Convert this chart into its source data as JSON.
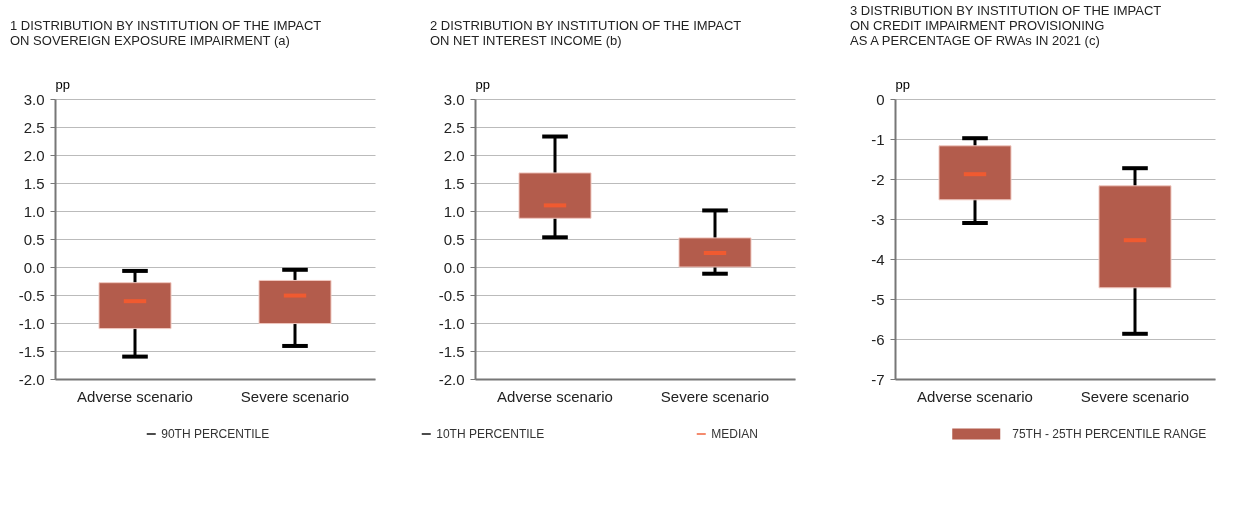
{
  "chart_data": [
    {
      "type": "box",
      "title": "1  DISTRIBUTION BY INSTITUTION OF THE IMPACT\nON SOVEREIGN EXPOSURE IMPAIRMENT (a)",
      "ylabel": "pp",
      "categories": [
        "Adverse scenario",
        "Severe scenario"
      ],
      "ylim": [
        -2,
        3
      ],
      "yticks": [
        {
          "value": -2,
          "label": "-2.0"
        },
        {
          "value": -1.5,
          "label": "-1.5"
        },
        {
          "value": -1,
          "label": "-1.0"
        },
        {
          "value": -0.5,
          "label": "-0.5"
        },
        {
          "value": 0,
          "label": "0.0"
        },
        {
          "value": 0.5,
          "label": "0.5"
        },
        {
          "value": 1,
          "label": "1.0"
        },
        {
          "value": 1.5,
          "label": "1.5"
        },
        {
          "value": 2,
          "label": "2.0"
        },
        {
          "value": 2.5,
          "label": "2.5"
        },
        {
          "value": 3,
          "label": "3.0"
        }
      ],
      "grid": "y",
      "series": [
        {
          "color": "#b35c4c",
          "boxes": [
            {
              "low": -1.6,
              "q1": -1.1,
              "median": -0.61,
              "q3": -0.28,
              "high": -0.07
            },
            {
              "low": -1.41,
              "q1": -1.01,
              "median": -0.51,
              "q3": -0.24,
              "high": -0.05
            }
          ]
        }
      ]
    },
    {
      "type": "box",
      "title": "2  DISTRIBUTION BY INSTITUTION OF THE IMPACT\nON NET INTEREST INCOME (b)",
      "ylabel": "pp",
      "categories": [
        "Adverse scenario",
        "Severe scenario"
      ],
      "ylim": [
        -2,
        3
      ],
      "yticks": [
        {
          "value": -2,
          "label": "-2.0"
        },
        {
          "value": -1.5,
          "label": "-1.5"
        },
        {
          "value": -1,
          "label": "-1.0"
        },
        {
          "value": -0.5,
          "label": "-0.5"
        },
        {
          "value": 0,
          "label": "0.0"
        },
        {
          "value": 0.5,
          "label": "0.5"
        },
        {
          "value": 1,
          "label": "1.0"
        },
        {
          "value": 1.5,
          "label": "1.5"
        },
        {
          "value": 2,
          "label": "2.0"
        },
        {
          "value": 2.5,
          "label": "2.5"
        },
        {
          "value": 3,
          "label": "3.0"
        }
      ],
      "grid": "y",
      "series": [
        {
          "color": "#b35c4c",
          "boxes": [
            {
              "low": 0.53,
              "q1": 0.87,
              "median": 1.1,
              "q3": 1.68,
              "high": 2.33
            },
            {
              "low": -0.12,
              "q1": 0.0,
              "median": 0.25,
              "q3": 0.52,
              "high": 1.01
            }
          ]
        }
      ]
    },
    {
      "type": "box",
      "title": "3  DISTRIBUTION BY INSTITUTION OF THE IMPACT\nON CREDIT IMPAIRMENT PROVISIONING\nAS A PERCENTAGE OF RWAs IN 2021 (c)",
      "ylabel": "pp",
      "categories": [
        "Adverse scenario",
        "Severe scenario"
      ],
      "ylim": [
        -7,
        0
      ],
      "yticks": [
        -7,
        -6,
        -5,
        -4,
        -3,
        -2,
        -1,
        0
      ],
      "grid": "y",
      "series": [
        {
          "color": "#b35c4c",
          "boxes": [
            {
              "low": -3.1,
              "q1": -2.52,
              "median": -1.88,
              "q3": -1.17,
              "high": -0.98
            },
            {
              "low": -5.87,
              "q1": -4.72,
              "median": -3.53,
              "q3": -2.17,
              "high": -1.73
            }
          ]
        }
      ]
    },
    {
      "type": "other",
      "series": [
        {
          "name": "90TH PERCENTILE",
          "color": "#000000",
          "type": "line"
        },
        {
          "name": "10TH PERCENTILE",
          "color": "#000000",
          "type": "line"
        },
        {
          "name": "MEDIAN",
          "color": "#f05a30",
          "type": "line"
        },
        {
          "name": "75TH - 25TH PERCENTILE RANGE",
          "color": "#b35c4c",
          "type": "bar"
        }
      ]
    }
  ]
}
